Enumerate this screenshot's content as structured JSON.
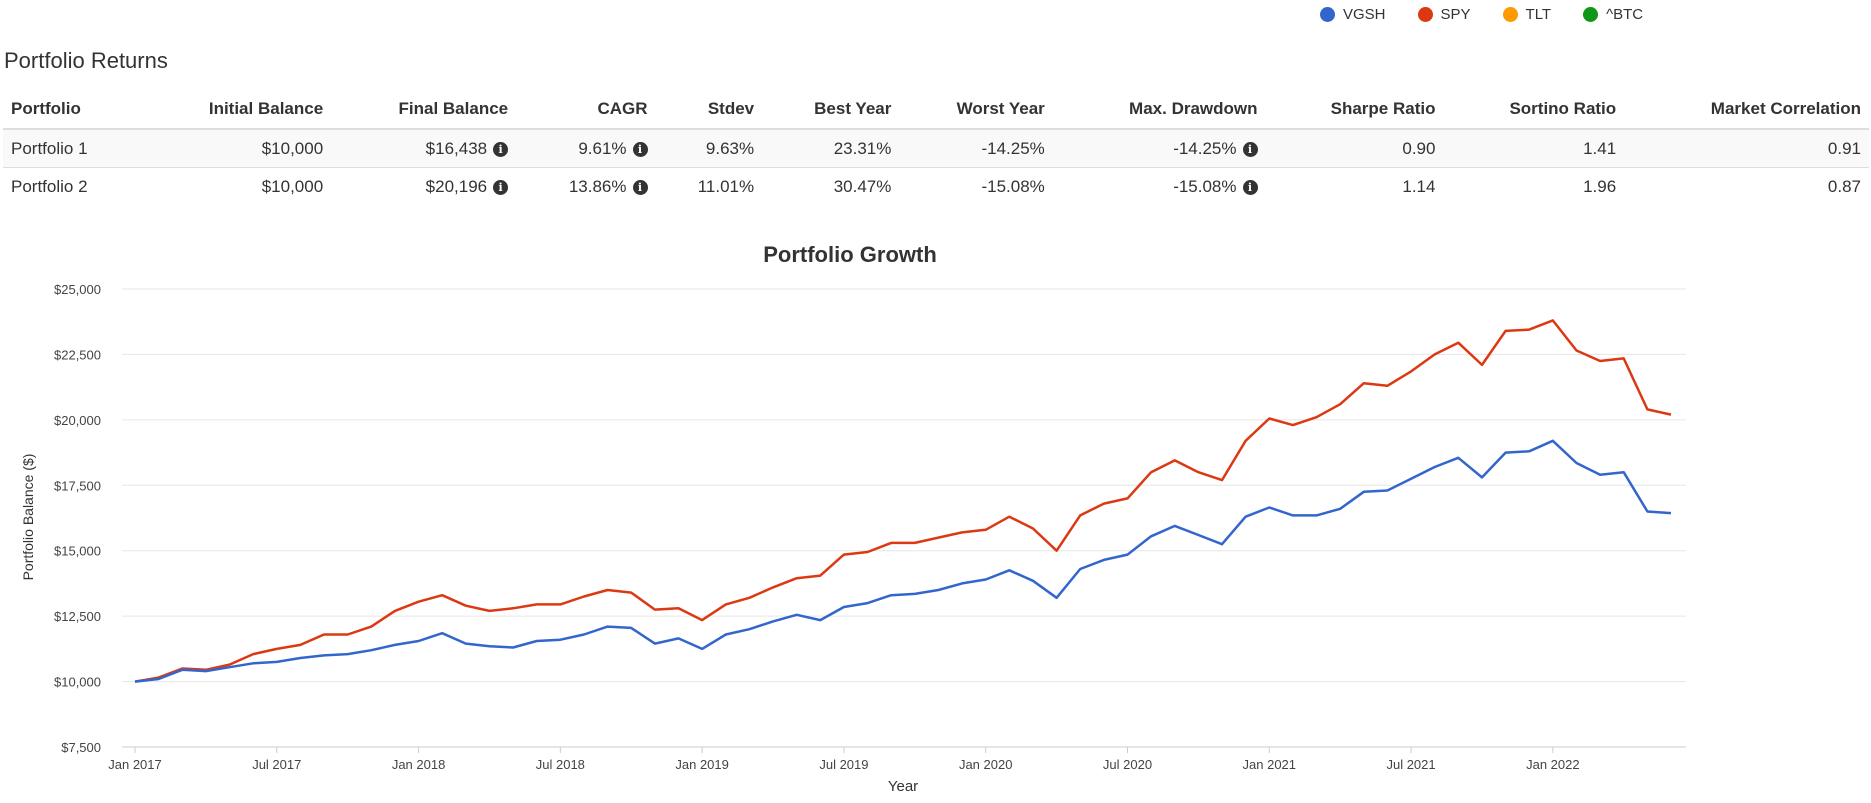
{
  "legend": [
    {
      "label": "VGSH",
      "color": "#3366cc"
    },
    {
      "label": "SPY",
      "color": "#dc3912"
    },
    {
      "label": "TLT",
      "color": "#ff9900"
    },
    {
      "label": "^BTC",
      "color": "#109618"
    }
  ],
  "section_title": "Portfolio Returns",
  "returns_table": {
    "headers": [
      "Portfolio",
      "Initial Balance",
      "Final Balance",
      "CAGR",
      "Stdev",
      "Best Year",
      "Worst Year",
      "Max. Drawdown",
      "Sharpe Ratio",
      "Sortino Ratio",
      "Market Correlation"
    ],
    "rows": [
      {
        "portfolio": "Portfolio 1",
        "initial": "$10,000",
        "final": "$16,438",
        "cagr": "9.61%",
        "stdev": "9.63%",
        "best": "23.31%",
        "worst": "-14.25%",
        "drawdown": "-14.25%",
        "sharpe": "0.90",
        "sortino": "1.41",
        "correlation": "0.91"
      },
      {
        "portfolio": "Portfolio 2",
        "initial": "$10,000",
        "final": "$20,196",
        "cagr": "13.86%",
        "stdev": "11.01%",
        "best": "30.47%",
        "worst": "-15.08%",
        "drawdown": "-15.08%",
        "sharpe": "1.14",
        "sortino": "1.96",
        "correlation": "0.87"
      }
    ]
  },
  "chart_data": {
    "type": "line",
    "title": "Portfolio Growth",
    "xlabel": "Year",
    "ylabel": "Portfolio Balance ($)",
    "ylim": [
      7500,
      25000
    ],
    "y_ticks": [
      7500,
      10000,
      12500,
      15000,
      17500,
      20000,
      22500,
      25000
    ],
    "y_tick_labels": [
      "$7,500",
      "$10,000",
      "$12,500",
      "$15,000",
      "$17,500",
      "$20,000",
      "$22,500",
      "$25,000"
    ],
    "x_ticks": [
      "2017-01",
      "2017-07",
      "2018-01",
      "2018-07",
      "2019-01",
      "2019-07",
      "2020-01",
      "2020-07",
      "2021-01",
      "2021-07",
      "2022-01"
    ],
    "x_tick_labels": [
      "Jan 2017",
      "Jul 2017",
      "Jan 2018",
      "Jul 2018",
      "Jan 2019",
      "Jul 2019",
      "Jan 2020",
      "Jul 2020",
      "Jan 2021",
      "Jul 2021",
      "Jan 2022"
    ],
    "x_start": "2017-01",
    "x_end": "2022-06",
    "grid": true,
    "series": [
      {
        "color": "#dc3912",
        "values": [
          10000,
          10150,
          10500,
          10450,
          10650,
          11050,
          11250,
          11400,
          11800,
          11800,
          12100,
          12700,
          13050,
          13300,
          12900,
          12700,
          12800,
          12950,
          12950,
          13250,
          13500,
          13400,
          12750,
          12800,
          12350,
          12950,
          13200,
          13600,
          13950,
          14050,
          14850,
          14950,
          15300,
          15300,
          15500,
          15700,
          15800,
          16300,
          15850,
          15000,
          16350,
          16800,
          17000,
          18000,
          18450,
          18000,
          17700,
          19200,
          20050,
          19800,
          20100,
          20600,
          21400,
          21300,
          21850,
          22500,
          22950,
          22100,
          23400,
          23450,
          23800,
          22650,
          22250,
          22350,
          20400,
          20200
        ]
      },
      {
        "color": "#3366cc",
        "values": [
          10000,
          10100,
          10450,
          10400,
          10550,
          10700,
          10750,
          10900,
          11000,
          11050,
          11200,
          11400,
          11550,
          11850,
          11450,
          11350,
          11300,
          11550,
          11600,
          11800,
          12100,
          12050,
          11450,
          11650,
          11250,
          11800,
          12000,
          12300,
          12550,
          12350,
          12850,
          13000,
          13300,
          13350,
          13500,
          13750,
          13900,
          14250,
          13850,
          13200,
          14300,
          14650,
          14850,
          15550,
          15950,
          15600,
          15250,
          16300,
          16650,
          16350,
          16350,
          16600,
          17250,
          17300,
          17750,
          18200,
          18550,
          17800,
          18750,
          18800,
          19200,
          18350,
          17900,
          18000,
          16500,
          16438
        ]
      }
    ]
  }
}
